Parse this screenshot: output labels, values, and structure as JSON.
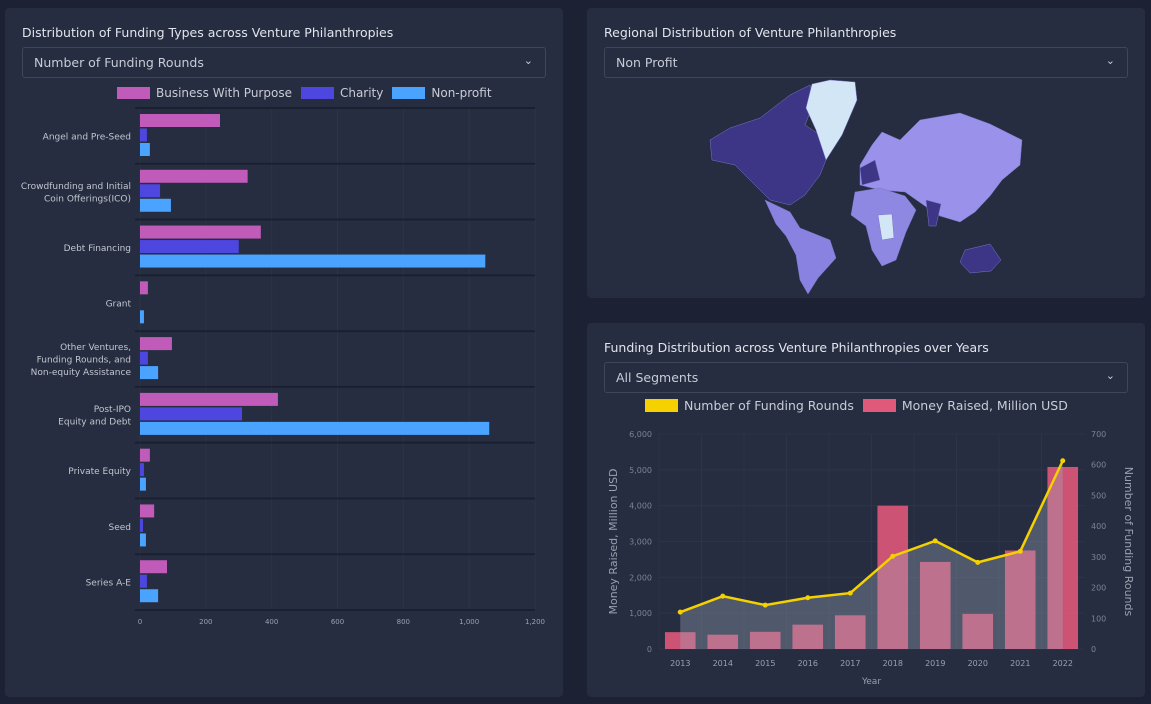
{
  "left_panel": {
    "title": "Distribution of Funding Types across Venture Philanthropies",
    "select_value": "Number of Funding Rounds",
    "chart_data": {
      "type": "bar",
      "orientation": "horizontal",
      "categories": [
        "Angel and Pre-Seed",
        "Crowdfunding and Initial Coin Offerings(ICO)",
        "Debt Financing",
        "Grant",
        "Other Ventures, Funding Rounds, and Non-equity Assistance",
        "Post-IPO Equity and Debt",
        "Private Equity",
        "Seed",
        "Series A-E"
      ],
      "category_lines": [
        [
          "Angel and Pre-Seed"
        ],
        [
          "Crowdfunding and Initial",
          "Coin Offerings(ICO)"
        ],
        [
          "Debt Financing"
        ],
        [
          "Grant"
        ],
        [
          "Other Ventures,",
          "Funding Rounds, and",
          "Non-equity Assistance"
        ],
        [
          "Post-IPO",
          "Equity and Debt"
        ],
        [
          "Private Equity"
        ],
        [
          "Seed"
        ],
        [
          "Series A-E"
        ]
      ],
      "series": [
        {
          "name": "Business With Purpose",
          "color": "#c15bb9",
          "values": [
            243,
            327,
            367,
            24,
            97,
            419,
            30,
            43,
            82
          ]
        },
        {
          "name": "Charity",
          "color": "#4d47e0",
          "values": [
            21,
            61,
            300,
            0,
            24,
            310,
            12,
            9,
            21
          ]
        },
        {
          "name": "Non-profit",
          "color": "#4aa3ff",
          "values": [
            30,
            94,
            1049,
            12,
            55,
            1061,
            18,
            18,
            55
          ]
        }
      ],
      "xlim": [
        0,
        1200
      ],
      "xticks": [
        "0",
        "200",
        "400",
        "600",
        "800",
        "1,000",
        "1,200"
      ],
      "legend": "top"
    }
  },
  "map_panel": {
    "title": "Regional Distribution of Venture Philanthropies",
    "select_value": "Non Profit"
  },
  "years_panel": {
    "title": "Funding Distribution across Venture Philanthropies over Years",
    "select_value": "All Segments",
    "chart_data": {
      "type": "bar+line",
      "categories": [
        "2013",
        "2014",
        "2015",
        "2016",
        "2017",
        "2018",
        "2019",
        "2020",
        "2021",
        "2022"
      ],
      "series": [
        {
          "name": "Number of Funding Rounds",
          "type": "line",
          "axis": "right",
          "color": "#f5d100",
          "values": [
            120,
            172,
            143,
            167,
            182,
            302,
            352,
            282,
            318,
            613
          ]
        },
        {
          "name": "Money Raised, Million USD",
          "type": "bar",
          "axis": "left",
          "color": "#e0587a",
          "values": [
            470,
            400,
            480,
            680,
            940,
            4000,
            2430,
            980,
            2750,
            5080
          ]
        }
      ],
      "xlabel": "Year",
      "ylabel": "Money Raised, Million USD",
      "y2label": "Number of Funding Rounds",
      "ylim": [
        0,
        6000
      ],
      "y2lim": [
        0,
        700
      ],
      "yticks": [
        "0",
        "1,000",
        "2,000",
        "3,000",
        "4,000",
        "5,000",
        "6,000"
      ],
      "y2ticks": [
        "0",
        "100",
        "200",
        "300",
        "400",
        "500",
        "600",
        "700"
      ],
      "legend": "top"
    }
  }
}
